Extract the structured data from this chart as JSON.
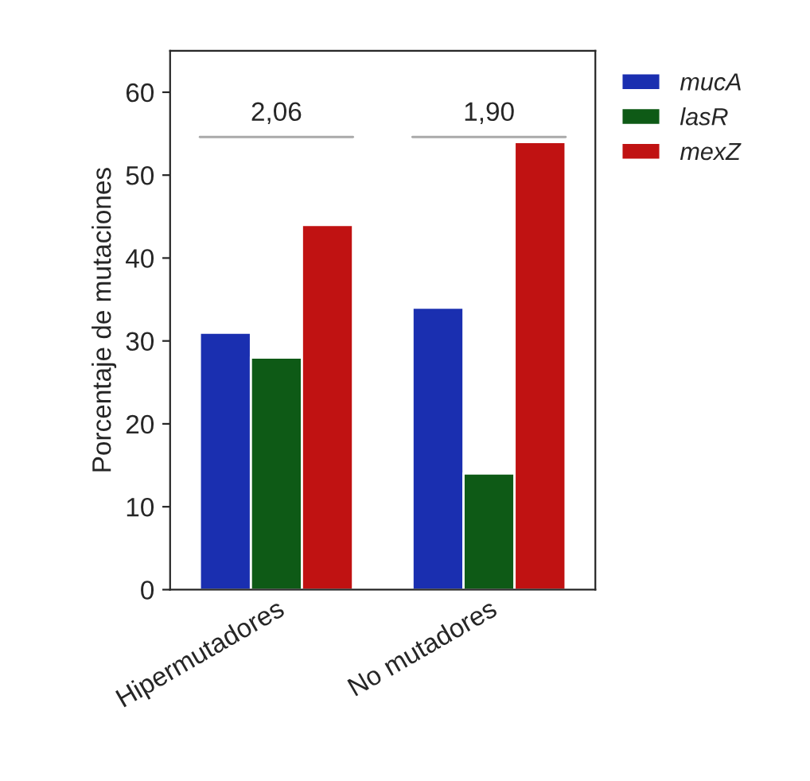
{
  "chart_data": {
    "type": "bar",
    "ylabel": "Porcentaje de mutaciones",
    "categories": [
      "Hipermutadores",
      "No mutadores"
    ],
    "series": [
      {
        "name": "mucA",
        "color": "#1a2fb0",
        "values": [
          31,
          34
        ]
      },
      {
        "name": "lasR",
        "color": "#0e5a16",
        "values": [
          28,
          14
        ]
      },
      {
        "name": "mexZ",
        "color": "#c01212",
        "values": [
          44,
          54
        ]
      }
    ],
    "ylim": [
      0,
      65
    ],
    "yticks": [
      0,
      10,
      20,
      30,
      40,
      50,
      60
    ],
    "grid": false,
    "legend": "top right",
    "annotations": [
      "2,06",
      "1,90"
    ]
  }
}
